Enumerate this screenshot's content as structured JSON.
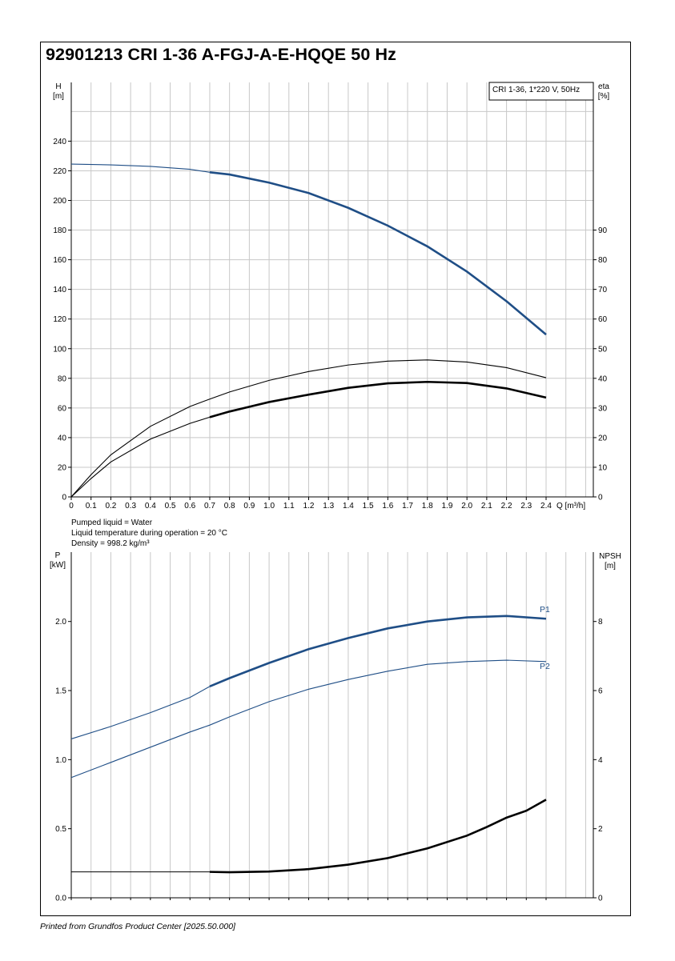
{
  "title": "92901213 CRI 1-36 A-FGJ-A-E-HQQE 50 Hz",
  "footer": "Printed from Grundfos Product Center [2025.50.000]",
  "colors": {
    "blue": "#1f4e86",
    "black": "#000000",
    "grid": "#c8c8c8"
  },
  "chart_data": [
    {
      "type": "line",
      "legend_box": "CRI 1-36, 1*220 V, 50Hz",
      "x": {
        "label": "Q [m³/h]",
        "range": [
          0,
          2.4
        ],
        "ticks": [
          "0",
          "0.1",
          "0.2",
          "0.3",
          "0.4",
          "0.5",
          "0.6",
          "0.7",
          "0.8",
          "0.9",
          "1.0",
          "1.1",
          "1.2",
          "1.3",
          "1.4",
          "1.5",
          "1.6",
          "1.7",
          "1.8",
          "1.9",
          "2.0",
          "2.1",
          "2.2",
          "2.3",
          "2.4"
        ]
      },
      "y_left": {
        "label": "H",
        "unit": "[m]",
        "range": [
          0,
          240
        ],
        "ticks": [
          "0",
          "20",
          "40",
          "60",
          "80",
          "100",
          "120",
          "140",
          "160",
          "180",
          "200",
          "220",
          "240"
        ]
      },
      "y_right": {
        "label": "eta",
        "unit": "[%]",
        "range": [
          0,
          90
        ],
        "ticks": [
          "0",
          "10",
          "20",
          "30",
          "40",
          "50",
          "60",
          "70",
          "80",
          "90"
        ]
      },
      "series": [
        {
          "id": "H",
          "axis": "left",
          "color": "blue",
          "thick_from": 0.7,
          "x": [
            0,
            0.2,
            0.4,
            0.6,
            0.7,
            0.8,
            1.0,
            1.2,
            1.4,
            1.6,
            1.8,
            2.0,
            2.2,
            2.4
          ],
          "values": [
            224.5,
            224,
            223,
            221,
            219,
            217.5,
            212,
            205,
            195,
            183,
            169,
            152,
            132,
            109.5
          ]
        },
        {
          "id": "eta1",
          "axis": "right",
          "color": "black",
          "thick_from": 99,
          "x": [
            0,
            0.1,
            0.2,
            0.4,
            0.6,
            0.7,
            0.8,
            1.0,
            1.2,
            1.4,
            1.6,
            1.8,
            2.0,
            2.2,
            2.4
          ],
          "values": [
            0,
            7.5,
            14.2,
            23.8,
            30.5,
            33,
            35.4,
            39.3,
            42.3,
            44.5,
            45.8,
            46.2,
            45.5,
            43.6,
            40.2
          ]
        },
        {
          "id": "eta2",
          "axis": "right",
          "color": "black",
          "thick_from": 0.7,
          "x": [
            0,
            0.1,
            0.2,
            0.4,
            0.6,
            0.7,
            0.8,
            1.0,
            1.2,
            1.4,
            1.6,
            1.8,
            2.0,
            2.2,
            2.4
          ],
          "values": [
            0,
            6.2,
            11.8,
            19.5,
            24.8,
            26.9,
            28.8,
            32.0,
            34.5,
            36.8,
            38.3,
            38.8,
            38.4,
            36.6,
            33.5
          ]
        }
      ]
    },
    {
      "type": "line",
      "x": {
        "label": "",
        "range": [
          0,
          2.4
        ]
      },
      "y_left": {
        "label": "P",
        "unit": "[kW]",
        "range": [
          0,
          2.5
        ],
        "ticks": [
          "0.0",
          "0.5",
          "1.0",
          "1.5",
          "2.0"
        ]
      },
      "y_right": {
        "label": "NPSH",
        "unit": "[m]",
        "range": [
          0,
          10
        ],
        "ticks": [
          "0",
          "2",
          "4",
          "6",
          "8"
        ]
      },
      "series": [
        {
          "id": "P1",
          "name": "P1",
          "axis": "left",
          "color": "blue",
          "thick_from": 0.7,
          "x": [
            0,
            0.2,
            0.4,
            0.6,
            0.7,
            0.8,
            1.0,
            1.2,
            1.4,
            1.6,
            1.8,
            2.0,
            2.2,
            2.4
          ],
          "values": [
            1.15,
            1.24,
            1.34,
            1.45,
            1.53,
            1.59,
            1.7,
            1.8,
            1.88,
            1.95,
            2.0,
            2.03,
            2.04,
            2.02
          ]
        },
        {
          "id": "P2",
          "name": "P2",
          "axis": "left",
          "color": "blue",
          "thick_from": 99,
          "x": [
            0,
            0.2,
            0.4,
            0.6,
            0.7,
            0.8,
            1.0,
            1.2,
            1.4,
            1.6,
            1.8,
            2.0,
            2.2,
            2.4
          ],
          "values": [
            0.87,
            0.98,
            1.09,
            1.2,
            1.25,
            1.31,
            1.42,
            1.51,
            1.58,
            1.64,
            1.69,
            1.71,
            1.72,
            1.71
          ]
        },
        {
          "id": "NPSH",
          "axis": "right",
          "color": "black",
          "thick_from": 0.7,
          "x": [
            0,
            0.2,
            0.4,
            0.6,
            0.7,
            0.8,
            1.0,
            1.2,
            1.4,
            1.6,
            1.8,
            2.0,
            2.1,
            2.2,
            2.3,
            2.4
          ],
          "values": [
            0.75,
            0.75,
            0.75,
            0.75,
            0.75,
            0.74,
            0.76,
            0.83,
            0.96,
            1.15,
            1.43,
            1.8,
            2.05,
            2.32,
            2.52,
            2.84
          ]
        }
      ]
    }
  ],
  "fluid_info": [
    "Pumped liquid = Water",
    "Liquid temperature during operation = 20 °C",
    "Density = 998.2 kg/m³"
  ]
}
